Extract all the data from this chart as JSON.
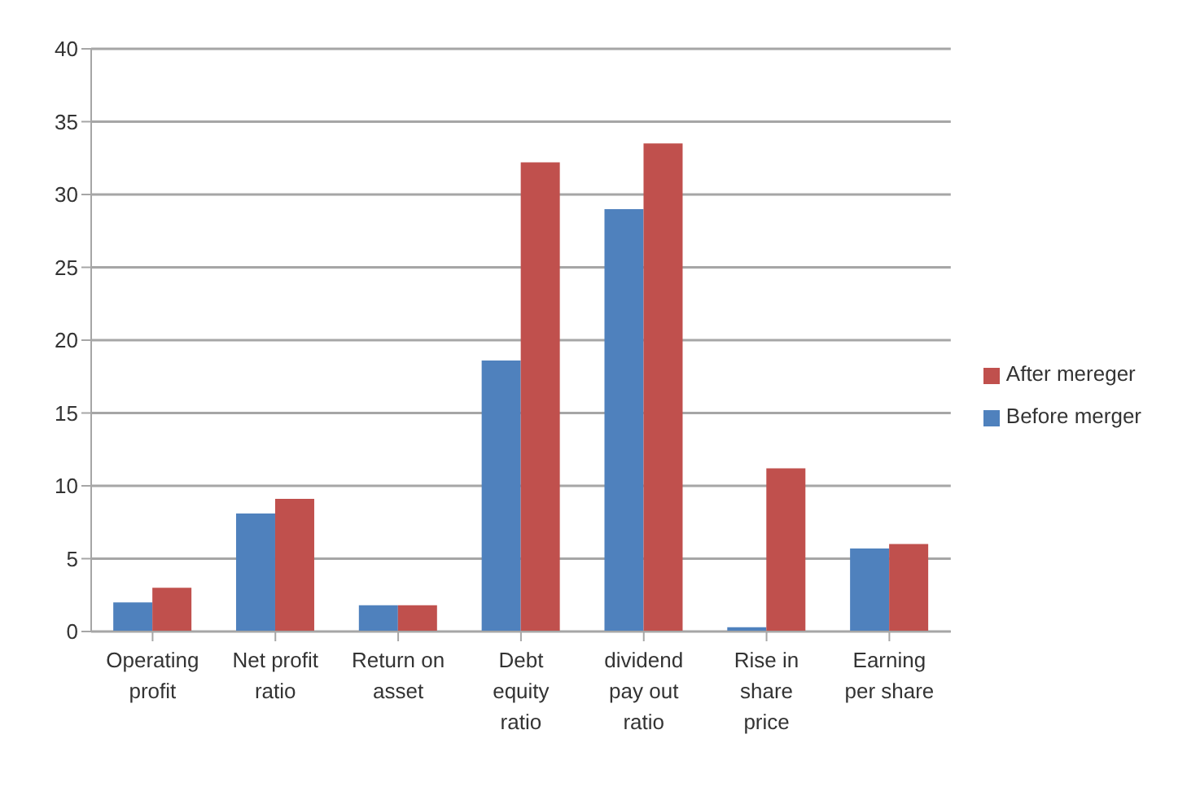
{
  "chart_data": {
    "type": "bar",
    "categories": [
      "Operating profit",
      "Net profit ratio",
      "Return on asset",
      "Debt equity ratio",
      "dividend pay out ratio",
      "Rise in share price",
      "Earning per share"
    ],
    "series": [
      {
        "name": "Before merger",
        "color": "#4f81bd",
        "values": [
          2.0,
          8.1,
          1.8,
          18.6,
          29.0,
          0.3,
          5.7
        ]
      },
      {
        "name": "After mereger",
        "color": "#c0504d",
        "values": [
          3.0,
          9.1,
          1.8,
          32.2,
          33.5,
          11.2,
          6.0
        ]
      }
    ],
    "ylim": [
      0,
      40
    ],
    "yticks": [
      0,
      5,
      10,
      15,
      20,
      25,
      30,
      35,
      40
    ],
    "grid": "y",
    "legend": "right"
  }
}
